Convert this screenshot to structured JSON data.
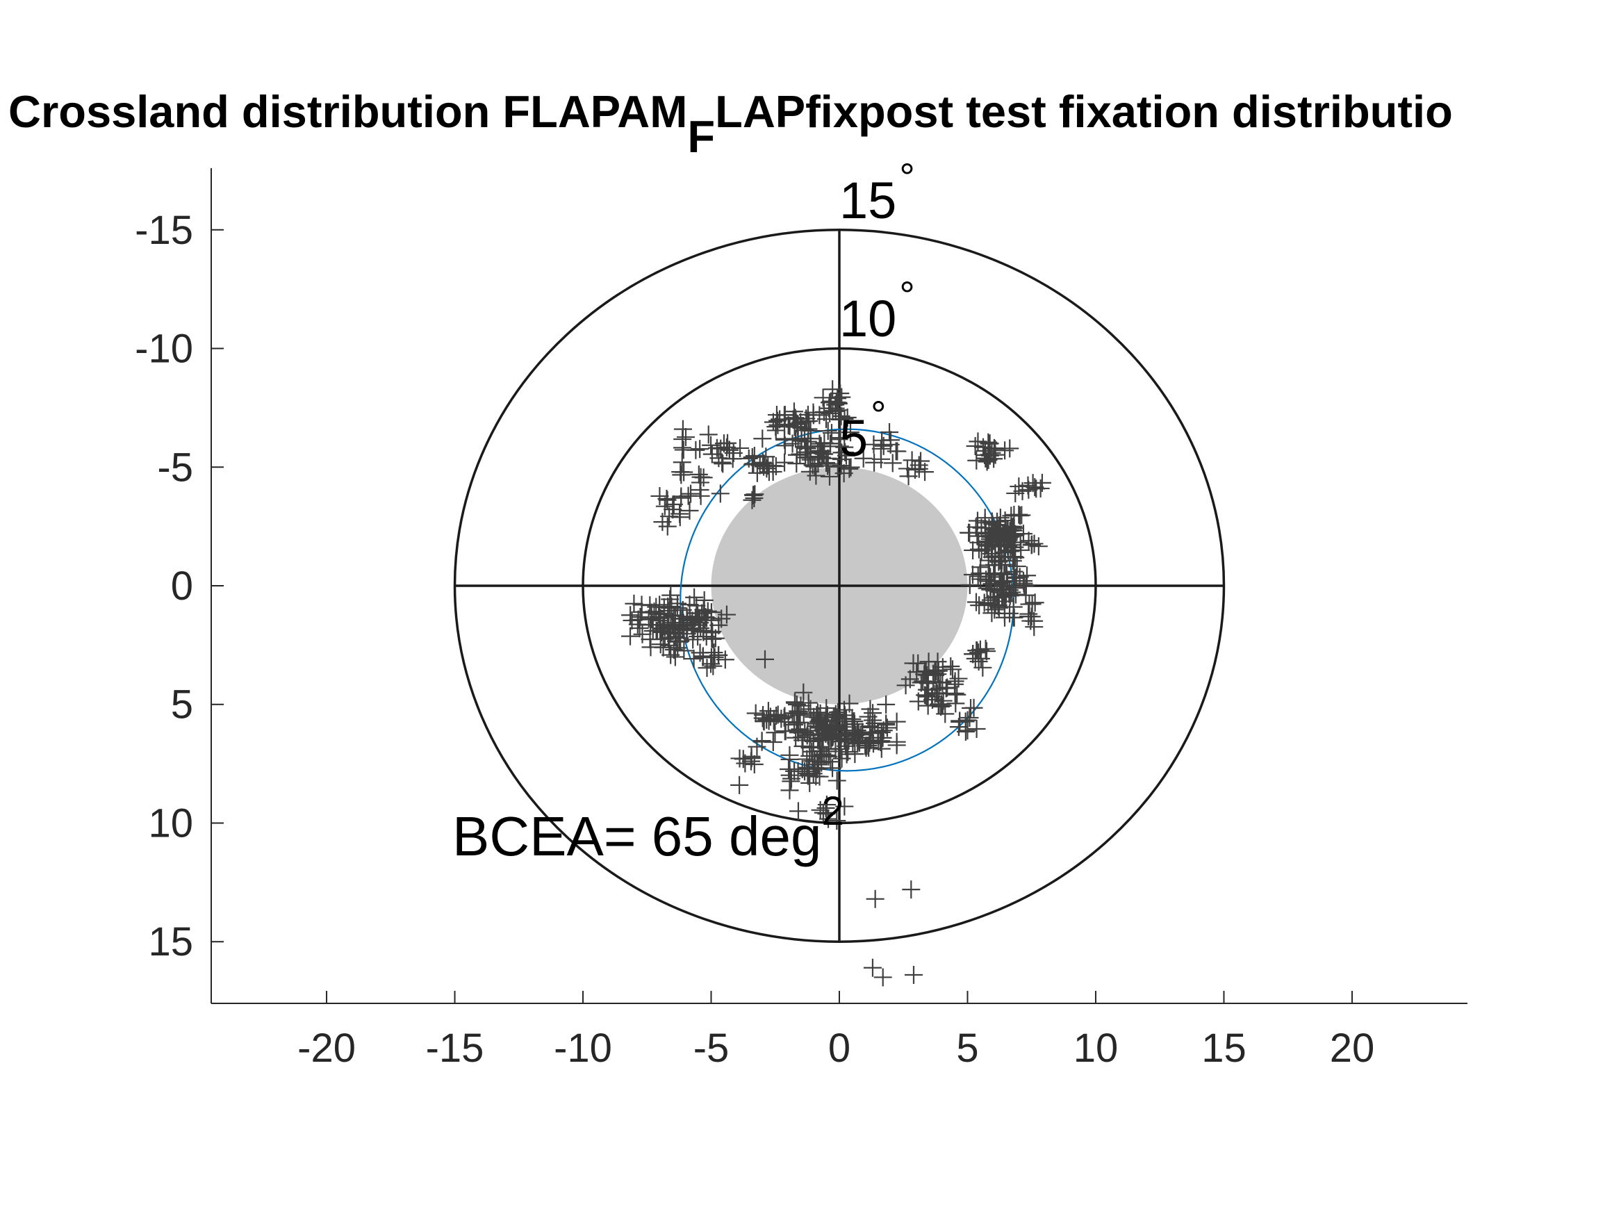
{
  "chart_data": {
    "type": "scatter",
    "title": {
      "main": "Crossland distribution FLAPAM",
      "subscript": "F",
      "rest": "LAPfixpost test fixation distributio"
    },
    "x_ticks": [
      "-20",
      "-15",
      "-10",
      "-5",
      "0",
      "5",
      "10",
      "15",
      "20"
    ],
    "y_ticks": [
      "-15",
      "-10",
      "-5",
      "0",
      "5",
      "10",
      "15"
    ],
    "xlim": [
      -24.5,
      24.5
    ],
    "ylim": [
      -17.6,
      17.6
    ],
    "y_reversed": true,
    "ring_labels": [
      {
        "text": "15",
        "degree": "°",
        "radius": 15
      },
      {
        "text": "10",
        "degree": "°",
        "radius": 10
      },
      {
        "text": "5",
        "degree": "°",
        "radius": 5
      }
    ],
    "reference_circles_radius": [
      15,
      10
    ],
    "crosshair_extent": 15,
    "scotoma": {
      "cx": 0,
      "cy": 0,
      "rx": 5,
      "ry": 5,
      "color": "#c8c8c8"
    },
    "bcea_ellipse": {
      "cx": 0.3,
      "cy": 0.6,
      "rx": 6.5,
      "ry": 7.2,
      "color": "#0072bd"
    },
    "bcea_label": {
      "text": "BCEA= 65 deg",
      "sup": "2"
    },
    "marker": "+",
    "marker_color": "#404040",
    "clusters": [
      {
        "x": -6.3,
        "y": 1.5,
        "n": 120,
        "sx": 0.9,
        "sy": 0.5
      },
      {
        "x": -0.6,
        "y": 6.0,
        "n": 120,
        "sx": 1.1,
        "sy": 0.5
      },
      {
        "x": 6.3,
        "y": -0.2,
        "n": 90,
        "sx": 0.55,
        "sy": 0.7
      },
      {
        "x": 6.2,
        "y": -2.2,
        "n": 80,
        "sx": 0.55,
        "sy": 0.45
      },
      {
        "x": -0.6,
        "y": -5.7,
        "n": 60,
        "sx": 0.7,
        "sy": 0.5
      },
      {
        "x": 3.8,
        "y": 4.3,
        "n": 55,
        "sx": 0.55,
        "sy": 0.5
      },
      {
        "x": 0.7,
        "y": 6.4,
        "n": 45,
        "sx": 0.7,
        "sy": 0.4
      },
      {
        "x": -1.0,
        "y": 7.3,
        "n": 35,
        "sx": 0.45,
        "sy": 0.45
      },
      {
        "x": -1.5,
        "y": -7.0,
        "n": 25,
        "sx": 0.9,
        "sy": 0.35
      },
      {
        "x": 5.9,
        "y": -5.6,
        "n": 22,
        "sx": 0.35,
        "sy": 0.3
      },
      {
        "x": -0.2,
        "y": -7.4,
        "n": 16,
        "sx": 0.35,
        "sy": 0.4
      },
      {
        "x": -4.5,
        "y": -5.8,
        "n": 16,
        "sx": 0.5,
        "sy": 0.35
      },
      {
        "x": -3.4,
        "y": -5.2,
        "n": 12,
        "sx": 0.35,
        "sy": 0.25
      },
      {
        "x": -6.5,
        "y": -3.2,
        "n": 12,
        "sx": 0.3,
        "sy": 0.35
      },
      {
        "x": -5.4,
        "y": -4.2,
        "n": 12,
        "sx": 0.35,
        "sy": 0.4
      },
      {
        "x": -5.0,
        "y": 3.2,
        "n": 12,
        "sx": 0.3,
        "sy": 0.2
      },
      {
        "x": -2.9,
        "y": 5.5,
        "n": 12,
        "sx": 0.35,
        "sy": 0.2
      },
      {
        "x": 5.4,
        "y": 2.9,
        "n": 12,
        "sx": 0.3,
        "sy": 0.25
      },
      {
        "x": 1.6,
        "y": -5.8,
        "n": 12,
        "sx": 0.3,
        "sy": 0.35
      },
      {
        "x": 7.3,
        "y": -4.2,
        "n": 10,
        "sx": 0.35,
        "sy": 0.2
      },
      {
        "x": 4.8,
        "y": 5.7,
        "n": 10,
        "sx": 0.3,
        "sy": 0.3
      },
      {
        "x": 3.2,
        "y": -5.0,
        "n": 8,
        "sx": 0.3,
        "sy": 0.2
      },
      {
        "x": -2.4,
        "y": -6.9,
        "n": 8,
        "sx": 0.35,
        "sy": 0.2
      },
      {
        "x": -3.5,
        "y": 7.3,
        "n": 8,
        "sx": 0.2,
        "sy": 0.4
      },
      {
        "x": 7.2,
        "y": 0.7,
        "n": 6,
        "sx": 0.25,
        "sy": 0.35
      },
      {
        "x": 7.1,
        "y": -1.5,
        "n": 6,
        "sx": 0.35,
        "sy": 0.25
      },
      {
        "x": -6.1,
        "y": 2.8,
        "n": 6,
        "sx": 0.3,
        "sy": 0.2
      },
      {
        "x": -2.8,
        "y": -5.0,
        "n": 6,
        "sx": 0.25,
        "sy": 0.2
      },
      {
        "x": 6.9,
        "y": -2.9,
        "n": 6,
        "sx": 0.2,
        "sy": 0.35
      },
      {
        "x": -1.3,
        "y": 8.0,
        "n": 6,
        "sx": 0.3,
        "sy": 0.3
      },
      {
        "x": -0.6,
        "y": 9.4,
        "n": 6,
        "sx": 0.2,
        "sy": 0.2
      },
      {
        "x": -1.4,
        "y": 5.0,
        "n": 6,
        "sx": 0.2,
        "sy": 0.3
      },
      {
        "x": -1.9,
        "y": 8.3,
        "n": 5,
        "sx": 0.15,
        "sy": 0.4
      },
      {
        "x": 0.0,
        "y": -7.8,
        "n": 5,
        "sx": 0.15,
        "sy": 0.2
      },
      {
        "x": -1.7,
        "y": -6.2,
        "n": 5,
        "sx": 0.2,
        "sy": 0.2
      },
      {
        "x": -3.3,
        "y": -3.8,
        "n": 5,
        "sx": 0.15,
        "sy": 0.1
      },
      {
        "x": -0.1,
        "y": 6.1,
        "n": 4,
        "sx": 0.2,
        "sy": 0.2
      },
      {
        "x": -6.1,
        "y": -5.7,
        "n": 5,
        "sx": 0.05,
        "sy": 0.6
      },
      {
        "x": 7.4,
        "y": 1.4,
        "n": 4,
        "sx": 0.2,
        "sy": 0.2
      }
    ],
    "sparse_points": [
      [
        -6.7,
        -2.5
      ],
      [
        -6.2,
        -4.8
      ],
      [
        -6.1,
        -6.6
      ],
      [
        -6.4,
        3.0
      ],
      [
        -2.9,
        3.1
      ],
      [
        -3.9,
        8.4
      ],
      [
        -1.6,
        9.5
      ],
      [
        -1.4,
        4.5
      ],
      [
        0.2,
        9.3
      ],
      [
        -0.1,
        9.9
      ],
      [
        -3.0,
        -6.2
      ],
      [
        7.0,
        -3.0
      ],
      [
        7.5,
        1.3
      ],
      [
        1.4,
        13.2
      ],
      [
        2.8,
        12.8
      ],
      [
        1.3,
        16.1
      ],
      [
        1.7,
        16.5
      ],
      [
        2.9,
        16.4
      ],
      [
        5.0,
        6.1
      ],
      [
        -4.5,
        -6.0
      ]
    ]
  }
}
